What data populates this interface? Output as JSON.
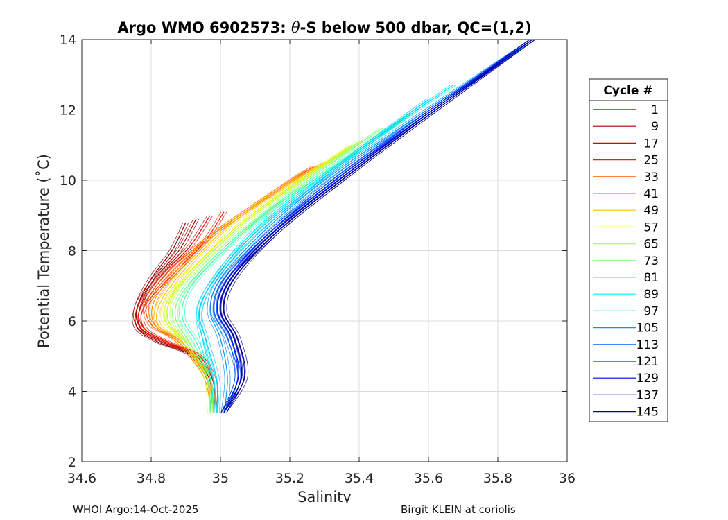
{
  "chart_data": {
    "type": "line",
    "title_prefix": "Argo WMO 6902573: ",
    "title_theta": "θ",
    "title_suffix": "-S below 500 dbar,  QC=(1,2)",
    "xlabel": "Salinity",
    "ylabel": "Potential Temperature (˚C)",
    "xlim": [
      34.6,
      36
    ],
    "ylim": [
      2,
      14
    ],
    "xticks": [
      34.6,
      34.8,
      35,
      35.2,
      35.4,
      35.6,
      35.8,
      36
    ],
    "xtick_labels": [
      "34.6",
      "34.8",
      "35",
      "35.2",
      "35.4",
      "35.6",
      "35.8",
      "36"
    ],
    "yticks": [
      2,
      4,
      6,
      8,
      10,
      12,
      14
    ],
    "ytick_labels": [
      "2",
      "4",
      "6",
      "8",
      "10",
      "12",
      "14"
    ],
    "grid": true,
    "legend_title": "Cycle #",
    "legend_position": "right",
    "legend_entries": [
      {
        "label": "1",
        "color": "#800000"
      },
      {
        "label": "9",
        "color": "#aa0000"
      },
      {
        "label": "17",
        "color": "#d40000"
      },
      {
        "label": "25",
        "color": "#ff1a00"
      },
      {
        "label": "33",
        "color": "#ff5500"
      },
      {
        "label": "41",
        "color": "#ff8c00"
      },
      {
        "label": "49",
        "color": "#ffc000"
      },
      {
        "label": "57",
        "color": "#f5f000"
      },
      {
        "label": "65",
        "color": "#b4ff3c"
      },
      {
        "label": "73",
        "color": "#78ff78"
      },
      {
        "label": "81",
        "color": "#3cffb4"
      },
      {
        "label": "89",
        "color": "#00f0f0"
      },
      {
        "label": "97",
        "color": "#00c8ff"
      },
      {
        "label": "105",
        "color": "#0096ff"
      },
      {
        "label": "113",
        "color": "#0064ff"
      },
      {
        "label": "121",
        "color": "#0032ff"
      },
      {
        "label": "129",
        "color": "#0000e6"
      },
      {
        "label": "137",
        "color": "#0000aa"
      },
      {
        "label": "145",
        "color": "#00008c"
      }
    ],
    "series": [
      {
        "name": "1",
        "color": "#800000",
        "salinity": [
          34.9,
          34.86,
          34.8,
          34.76,
          34.76,
          34.82,
          34.92,
          34.97,
          34.98
        ],
        "theta": [
          8.8,
          8.0,
          7.2,
          6.4,
          5.8,
          5.4,
          5.0,
          4.3,
          3.4
        ]
      },
      {
        "name": "9",
        "color": "#aa0000",
        "salinity": [
          34.93,
          34.88,
          34.81,
          34.76,
          34.77,
          34.84,
          34.93,
          34.97,
          34.98
        ],
        "theta": [
          8.9,
          8.0,
          7.2,
          6.4,
          5.8,
          5.4,
          5.0,
          4.3,
          3.4
        ]
      },
      {
        "name": "17",
        "color": "#d40000",
        "salinity": [
          34.97,
          34.91,
          34.83,
          34.77,
          34.77,
          34.84,
          34.94,
          34.97,
          34.98
        ],
        "theta": [
          9.0,
          8.1,
          7.3,
          6.4,
          5.8,
          5.4,
          5.0,
          4.3,
          3.4
        ]
      },
      {
        "name": "25",
        "color": "#ff1a00",
        "salinity": [
          35.01,
          34.95,
          34.86,
          34.78,
          34.78,
          34.85,
          34.94,
          34.98,
          34.98
        ],
        "theta": [
          9.1,
          8.2,
          7.3,
          6.4,
          5.8,
          5.4,
          5.0,
          4.3,
          3.4
        ]
      },
      {
        "name": "33",
        "color": "#ff5500",
        "salinity": [
          35.27,
          35.1,
          34.97,
          34.86,
          34.79,
          34.8,
          34.88,
          34.96,
          34.98
        ],
        "theta": [
          10.4,
          9.3,
          8.4,
          7.5,
          6.6,
          5.9,
          5.4,
          4.4,
          3.4
        ]
      },
      {
        "name": "41",
        "color": "#ff8c00",
        "salinity": [
          35.25,
          35.1,
          34.97,
          34.88,
          34.81,
          34.81,
          34.88,
          34.96,
          34.98
        ],
        "theta": [
          10.3,
          9.3,
          8.4,
          7.5,
          6.6,
          5.9,
          5.4,
          4.4,
          3.4
        ]
      },
      {
        "name": "49",
        "color": "#ffc000",
        "salinity": [
          35.3,
          35.12,
          35.0,
          34.9,
          34.83,
          34.82,
          34.89,
          34.96,
          34.98
        ],
        "theta": [
          10.5,
          9.4,
          8.5,
          7.5,
          6.6,
          5.9,
          5.4,
          4.4,
          3.4
        ]
      },
      {
        "name": "57",
        "color": "#f5f000",
        "salinity": [
          35.38,
          35.2,
          35.05,
          34.93,
          34.85,
          34.84,
          34.9,
          34.96,
          34.97
        ],
        "theta": [
          11.0,
          9.8,
          8.7,
          7.6,
          6.6,
          6.0,
          5.4,
          4.4,
          3.4
        ]
      },
      {
        "name": "65",
        "color": "#b4ff3c",
        "salinity": [
          35.4,
          35.22,
          35.07,
          34.95,
          34.86,
          34.85,
          34.9,
          34.96,
          34.97
        ],
        "theta": [
          11.1,
          9.9,
          8.8,
          7.7,
          6.7,
          6.0,
          5.4,
          4.4,
          3.4
        ]
      },
      {
        "name": "73",
        "color": "#78ff78",
        "salinity": [
          35.47,
          35.28,
          35.12,
          34.99,
          34.89,
          34.87,
          34.91,
          34.97,
          34.98
        ],
        "theta": [
          11.5,
          10.2,
          9.0,
          7.9,
          6.8,
          6.1,
          5.4,
          4.4,
          3.4
        ]
      },
      {
        "name": "81",
        "color": "#3cffb4",
        "salinity": [
          35.55,
          35.33,
          35.15,
          35.01,
          34.91,
          34.89,
          34.93,
          34.97,
          34.98
        ],
        "theta": [
          11.9,
          10.4,
          9.2,
          8.0,
          6.9,
          6.1,
          5.4,
          4.4,
          3.4
        ]
      },
      {
        "name": "89",
        "color": "#00f0f0",
        "salinity": [
          35.67,
          35.45,
          35.25,
          35.1,
          35.0,
          34.94,
          34.95,
          34.98,
          34.99
        ],
        "theta": [
          12.7,
          11.2,
          9.8,
          8.6,
          7.4,
          6.4,
          5.4,
          4.3,
          3.4
        ]
      },
      {
        "name": "97",
        "color": "#00c8ff",
        "salinity": [
          35.6,
          35.42,
          35.25,
          35.1,
          34.99,
          34.94,
          34.96,
          34.99,
          34.99
        ],
        "theta": [
          12.3,
          11.0,
          9.7,
          8.5,
          7.3,
          6.3,
          5.4,
          4.3,
          3.4
        ]
      },
      {
        "name": "105",
        "color": "#0096ff",
        "salinity": [
          35.9,
          35.55,
          35.3,
          35.12,
          35.0,
          34.97,
          35.0,
          35.02,
          35.01
        ],
        "theta": [
          14.0,
          11.7,
          10.0,
          8.5,
          7.2,
          6.3,
          5.5,
          4.4,
          3.4
        ]
      },
      {
        "name": "113",
        "color": "#0064ff",
        "salinity": [
          35.9,
          35.56,
          35.32,
          35.14,
          35.01,
          34.98,
          35.02,
          35.05,
          35.01
        ],
        "theta": [
          14.0,
          11.7,
          10.0,
          8.5,
          7.2,
          6.3,
          5.5,
          4.4,
          3.4
        ]
      },
      {
        "name": "121",
        "color": "#0032ff",
        "salinity": [
          35.9,
          35.57,
          35.33,
          35.14,
          35.02,
          34.99,
          35.03,
          35.05,
          35.01
        ],
        "theta": [
          14.0,
          11.7,
          10.0,
          8.5,
          7.2,
          6.3,
          5.5,
          4.4,
          3.4
        ]
      },
      {
        "name": "129",
        "color": "#0000e6",
        "salinity": [
          35.9,
          35.57,
          35.34,
          35.15,
          35.03,
          35.0,
          35.04,
          35.06,
          35.01
        ],
        "theta": [
          14.0,
          11.7,
          10.0,
          8.5,
          7.2,
          6.3,
          5.5,
          4.4,
          3.4
        ]
      },
      {
        "name": "137",
        "color": "#0000aa",
        "salinity": [
          35.9,
          35.58,
          35.35,
          35.16,
          35.03,
          35.0,
          35.04,
          35.06,
          35.01
        ],
        "theta": [
          14.0,
          11.7,
          10.0,
          8.5,
          7.2,
          6.3,
          5.5,
          4.4,
          3.4
        ]
      },
      {
        "name": "145",
        "color": "#00008c",
        "salinity": [
          35.9,
          35.58,
          35.35,
          35.16,
          35.04,
          35.01,
          35.05,
          35.07,
          35.01
        ],
        "theta": [
          14.0,
          11.7,
          10.0,
          8.5,
          7.2,
          6.3,
          5.5,
          4.4,
          3.4
        ]
      }
    ]
  },
  "footer": {
    "left": "WHOI Argo:14-Oct-2025",
    "right": "Birgit KLEIN at coriolis"
  }
}
